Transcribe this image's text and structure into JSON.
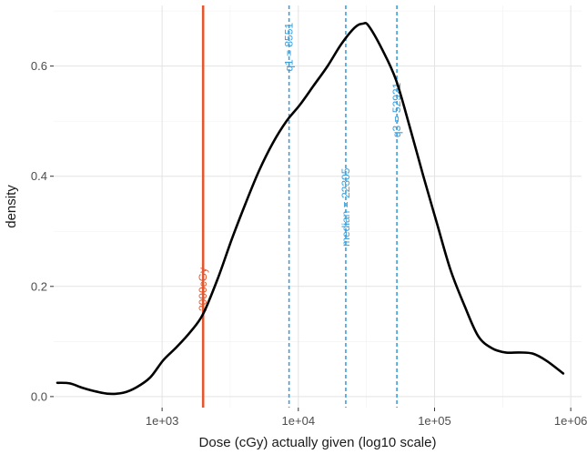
{
  "chart_data": {
    "type": "line",
    "title": "",
    "xlabel": "Dose (cGy) actually given (log10 scale)",
    "ylabel": "density",
    "x_scale": "log10",
    "xlim": [
      160,
      1200000
    ],
    "ylim": [
      -0.02,
      0.71
    ],
    "x_ticks": [
      {
        "value": 1000,
        "label": "1e+03"
      },
      {
        "value": 10000,
        "label": "1e+04"
      },
      {
        "value": 100000,
        "label": "1e+05"
      },
      {
        "value": 1000000,
        "label": "1e+06"
      }
    ],
    "y_ticks": [
      {
        "value": 0.0,
        "label": "0.0"
      },
      {
        "value": 0.2,
        "label": "0.2"
      },
      {
        "value": 0.4,
        "label": "0.4"
      },
      {
        "value": 0.6,
        "label": "0.6"
      }
    ],
    "grid": true,
    "series": [
      {
        "color": "#000000",
        "x": [
          170,
          210,
          260,
          330,
          410,
          520,
          650,
          820,
          1020,
          1280,
          1620,
          2000,
          2570,
          3240,
          4090,
          5150,
          6490,
          8190,
          10300,
          13000,
          16400,
          20700,
          26000,
          29800,
          32800,
          41300,
          52100,
          65700,
          82800,
          104000,
          131000,
          166000,
          209000,
          263000,
          332000,
          418000,
          526000,
          664000,
          880000
        ],
        "y": [
          0.025,
          0.024,
          0.016,
          0.009,
          0.005,
          0.007,
          0.017,
          0.035,
          0.066,
          0.09,
          0.118,
          0.15,
          0.215,
          0.285,
          0.35,
          0.41,
          0.46,
          0.5,
          0.53,
          0.565,
          0.6,
          0.64,
          0.67,
          0.677,
          0.673,
          0.63,
          0.575,
          0.49,
          0.4,
          0.315,
          0.23,
          0.165,
          0.11,
          0.088,
          0.08,
          0.08,
          0.078,
          0.065,
          0.042
        ]
      }
    ],
    "reference_lines": [
      {
        "x": 2000,
        "label": "2000cGy",
        "color": "#e4572e",
        "style": "solid"
      },
      {
        "x": 8551,
        "label": "q1 = 8551",
        "color": "#3aa0dd",
        "style": "dashed"
      },
      {
        "x": 22305,
        "label": "median = 22305",
        "color": "#3aa0dd",
        "style": "dashed"
      },
      {
        "x": 52921,
        "label": "q3 = 52921",
        "color": "#3aa0dd",
        "style": "dashed"
      }
    ]
  }
}
